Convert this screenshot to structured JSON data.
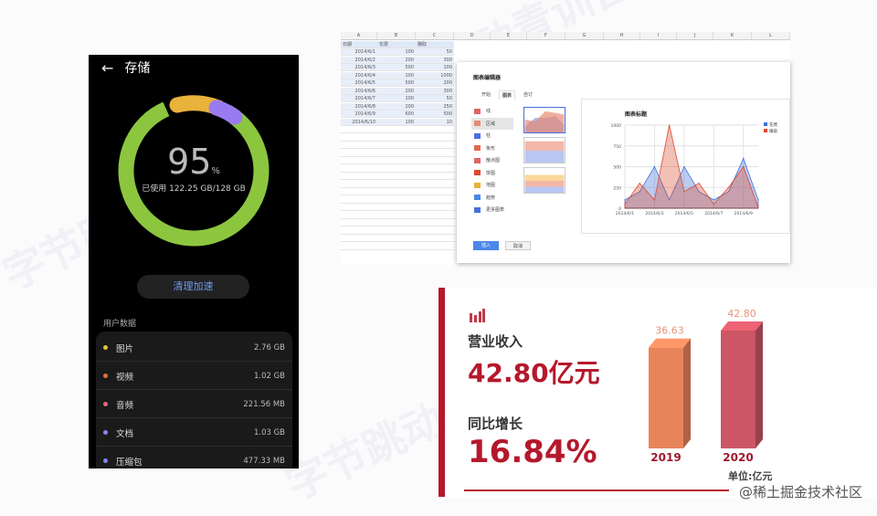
{
  "watermark": "字节跳动青训营",
  "phone": {
    "title": "存储",
    "percent": "95",
    "percent_unit": "%",
    "used_text": "已使用 122.25 GB/128 GB",
    "used_fraction": 0.95,
    "clean_button": "清理加速",
    "section": "用户数据",
    "items": [
      {
        "label": "图片",
        "size": "2.76 GB",
        "color": "#e6c533"
      },
      {
        "label": "视频",
        "size": "1.02 GB",
        "color": "#e8703f"
      },
      {
        "label": "音频",
        "size": "221.56 MB",
        "color": "#e8657a"
      },
      {
        "label": "文档",
        "size": "1.03 GB",
        "color": "#9a7af0"
      },
      {
        "label": "压缩包",
        "size": "477.33 MB",
        "color": "#7f86f0"
      }
    ],
    "ring_color": "#8cc63f"
  },
  "sheet": {
    "columns": [
      "A",
      "B",
      "C",
      "D",
      "E",
      "F",
      "G",
      "H",
      "I",
      "J",
      "K",
      "L"
    ],
    "headers": [
      "日期",
      "花费",
      "赚取"
    ],
    "rows": [
      [
        "2014/6/1",
        "100",
        "50"
      ],
      [
        "2014/6/2",
        "200",
        "300"
      ],
      [
        "2014/6/3",
        "500",
        "100"
      ],
      [
        "2014/6/4",
        "100",
        "1000"
      ],
      [
        "2014/6/5",
        "500",
        "200"
      ],
      [
        "2014/6/6",
        "200",
        "300"
      ],
      [
        "2014/6/7",
        "100",
        "50"
      ],
      [
        "2014/6/8",
        "200",
        "250"
      ],
      [
        "2014/6/9",
        "600",
        "500"
      ],
      [
        "2014/6/10",
        "100",
        "10"
      ]
    ]
  },
  "dialog": {
    "title": "图表编辑器",
    "tabs": [
      "开始",
      "图表",
      "自订"
    ],
    "active_tab": 1,
    "types": [
      "线",
      "区域",
      "柱",
      "条形",
      "散点图",
      "饼图",
      "地图",
      "趋势",
      "更多图表"
    ],
    "active_type": 1,
    "insert": "插入",
    "cancel": "取消"
  },
  "chart_data": [
    {
      "type": "area",
      "title": "图表标题",
      "x": [
        "2014/6/1",
        "2014/6/2",
        "2014/6/3",
        "2014/6/4",
        "2014/6/5",
        "2014/6/6",
        "2014/6/7",
        "2014/6/8",
        "2014/6/9",
        "2014/6/10"
      ],
      "xticks": [
        "2014/6/1",
        "2014/6/3",
        "2014/6/5",
        "2014/6/7",
        "2014/6/9"
      ],
      "yticks": [
        0,
        250,
        500,
        750,
        1000
      ],
      "ylim": [
        0,
        1000
      ],
      "legend": "right",
      "series": [
        {
          "name": "花费",
          "color": "#3f6fd8",
          "values": [
            100,
            200,
            500,
            100,
            500,
            200,
            100,
            200,
            600,
            100
          ]
        },
        {
          "name": "赚取",
          "color": "#dc4a2e",
          "values": [
            50,
            300,
            100,
            1000,
            200,
            300,
            50,
            250,
            500,
            10
          ]
        }
      ]
    },
    {
      "type": "bar",
      "categories": [
        "2019",
        "2020"
      ],
      "values": [
        36.63,
        42.8
      ],
      "labels": [
        "36.63",
        "42.80"
      ],
      "colors": [
        "#e8845a",
        "#cc5665"
      ],
      "unit_label": "单位:亿元"
    }
  ],
  "finance": {
    "revenue_label": "营业收入",
    "revenue_value": "42.80亿元",
    "growth_label": "同比增长",
    "growth_value": "16.84%",
    "accent": "#b5182b",
    "source": "@稀土掘金技术社区"
  }
}
